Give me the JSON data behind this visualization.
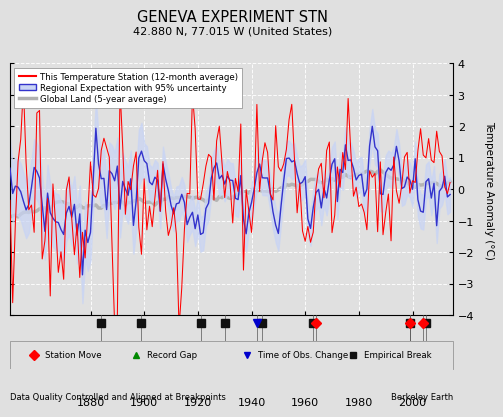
{
  "title": "GENEVA EXPERIMENT STN",
  "subtitle": "42.880 N, 77.015 W (United States)",
  "ylabel": "Temperature Anomaly (°C)",
  "footer_left": "Data Quality Controlled and Aligned at Breakpoints",
  "footer_right": "Berkeley Earth",
  "xlim": [
    1850,
    2015
  ],
  "ylim": [
    -4,
    4
  ],
  "yticks": [
    -4,
    -3,
    -2,
    -1,
    0,
    1,
    2,
    3,
    4
  ],
  "xticks": [
    1880,
    1900,
    1920,
    1940,
    1960,
    1980,
    2000
  ],
  "bg_color": "#e0e0e0",
  "legend_items": [
    {
      "label": "This Temperature Station (12-month average)",
      "color": "#ff0000",
      "lw": 1.2
    },
    {
      "label": "Regional Expectation with 95% uncertainty",
      "color": "#3333cc",
      "band": "#aabbff"
    },
    {
      "label": "Global Land (5-year average)",
      "color": "#b0b0b0",
      "lw": 2.5
    }
  ],
  "marker_legend": [
    {
      "label": "Station Move",
      "color": "#ff0000",
      "marker": "D"
    },
    {
      "label": "Record Gap",
      "color": "#008800",
      "marker": "^"
    },
    {
      "label": "Time of Obs. Change",
      "color": "#0000cc",
      "marker": "v"
    },
    {
      "label": "Empirical Break",
      "color": "#111111",
      "marker": "s"
    }
  ],
  "station_moves": [
    1964,
    1999,
    2004
  ],
  "record_gaps": [],
  "obs_changes": [
    1942
  ],
  "empirical_breaks": [
    1884,
    1899,
    1921,
    1930,
    1944,
    1963,
    1999,
    2005
  ],
  "grid_color": "#ffffff",
  "seed": 17
}
